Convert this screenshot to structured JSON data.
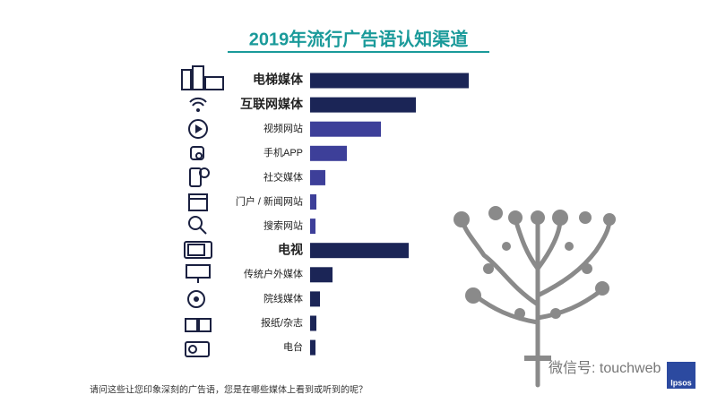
{
  "chart_data": {
    "type": "bar",
    "orientation": "horizontal",
    "title": "2019年流行广告语认知渠道",
    "categories": [
      "电梯媒体",
      "互联网媒体",
      "视频网站",
      "手机APP",
      "社交媒体",
      "门户 / 新闻网站",
      "搜索网站",
      "电视",
      "传统户外媒体",
      "院线媒体",
      "报纸/杂志",
      "电台"
    ],
    "values": [
      177,
      118,
      79,
      41,
      17,
      7,
      6,
      110,
      25,
      11,
      7,
      6
    ],
    "colors": [
      "#1b2556",
      "#1b2556",
      "#3d3f99",
      "#3d3f99",
      "#3d3f99",
      "#3d3f99",
      "#3d3f99",
      "#1b2556",
      "#1b2556",
      "#1b2556",
      "#1b2556",
      "#1b2556"
    ],
    "bold": [
      true,
      true,
      false,
      false,
      false,
      false,
      false,
      true,
      false,
      false,
      false,
      false
    ],
    "xlim": [
      0,
      180
    ],
    "title_color": "#1a9a9a",
    "footnote": "请问这些让您印象深刻的广告语，您是在哪些媒体上看到或听到的呢？",
    "watermark": "微信号: touchweb",
    "logo": "Ipsos"
  }
}
